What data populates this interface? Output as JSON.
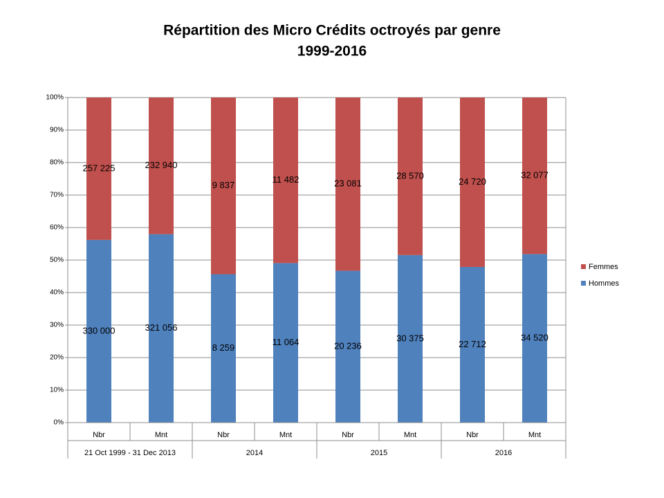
{
  "chart_data": {
    "type": "bar",
    "stacking": "percent",
    "title": "Répartition des Micro Crédits octroyés par genre",
    "subtitle": "1999-2016",
    "categories": [
      "Nbr",
      "Mnt",
      "Nbr",
      "Mnt",
      "Nbr",
      "Mnt",
      "Nbr",
      "Mnt"
    ],
    "category_groups": [
      "21 Oct 1999 - 31 Dec 2013",
      "2014",
      "2015",
      "2016"
    ],
    "series": [
      {
        "name": "Hommes",
        "color": "#4f81bd",
        "values": [
          330000,
          321056,
          8259,
          11064,
          20236,
          30375,
          22712,
          34520
        ],
        "value_labels": [
          "330 000",
          "321 056",
          "8 259",
          "11 064",
          "20 236",
          "30 375",
          "22 712",
          "34 520"
        ]
      },
      {
        "name": "Femmes",
        "color": "#c0504d",
        "values": [
          257225,
          232940,
          9837,
          11482,
          23081,
          28570,
          24720,
          32077
        ],
        "value_labels": [
          "257 225",
          "232 940",
          "9 837",
          "11 482",
          "23 081",
          "28 570",
          "24 720",
          "32 077"
        ]
      }
    ],
    "ylim": [
      0,
      100
    ],
    "yticks": [
      {
        "value": 0,
        "label": "0%"
      },
      {
        "value": 10,
        "label": "10%"
      },
      {
        "value": 20,
        "label": "20%"
      },
      {
        "value": 30,
        "label": "30%"
      },
      {
        "value": 40,
        "label": "40%"
      },
      {
        "value": 50,
        "label": "50%"
      },
      {
        "value": 60,
        "label": "60%"
      },
      {
        "value": 70,
        "label": "70%"
      },
      {
        "value": 80,
        "label": "80%"
      },
      {
        "value": 90,
        "label": "90%"
      },
      {
        "value": 100,
        "label": "100%"
      }
    ],
    "grid": true,
    "legend": "right"
  }
}
